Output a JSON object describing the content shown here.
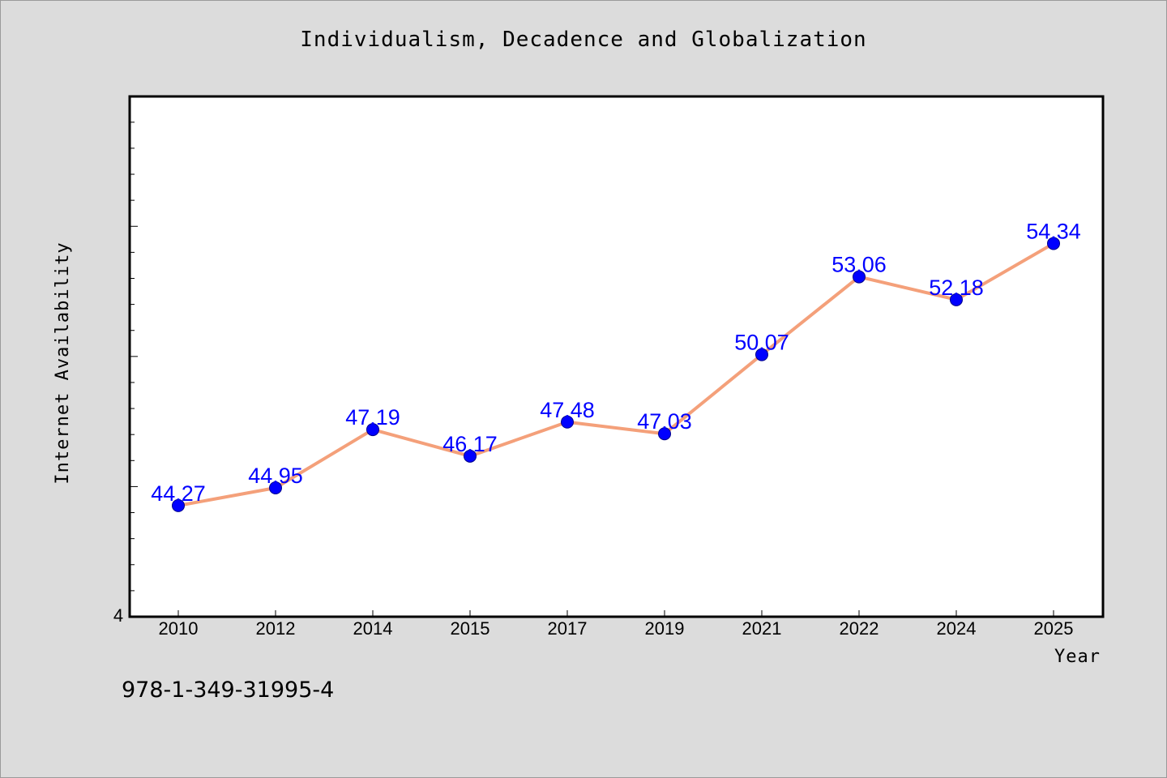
{
  "figure": {
    "isbn": "978-1-349-31995-4"
  },
  "chart_data": {
    "type": "line",
    "title": "Individualism, Decadence and Globalization",
    "xlabel": "Year",
    "ylabel": "Internet Availability",
    "categories": [
      "2010",
      "2012",
      "2014",
      "2015",
      "2017",
      "2019",
      "2021",
      "2022",
      "2024",
      "2025"
    ],
    "series": [
      {
        "values": [
          44.27,
          44.95,
          47.19,
          46.17,
          47.48,
          47.03,
          50.07,
          53.06,
          52.18,
          54.34
        ],
        "line_color": "#f4a07a",
        "marker_color": "#0000ff"
      }
    ],
    "data_labels": [
      "44.27",
      "44.95",
      "47.19",
      "46.17",
      "47.48",
      "47.03",
      "50.07",
      "53.06",
      "52.18",
      "54.34"
    ],
    "y_tick_labels": [
      "4"
    ],
    "ylim": [
      40,
      59.99
    ],
    "grid": false,
    "legend": "none"
  }
}
